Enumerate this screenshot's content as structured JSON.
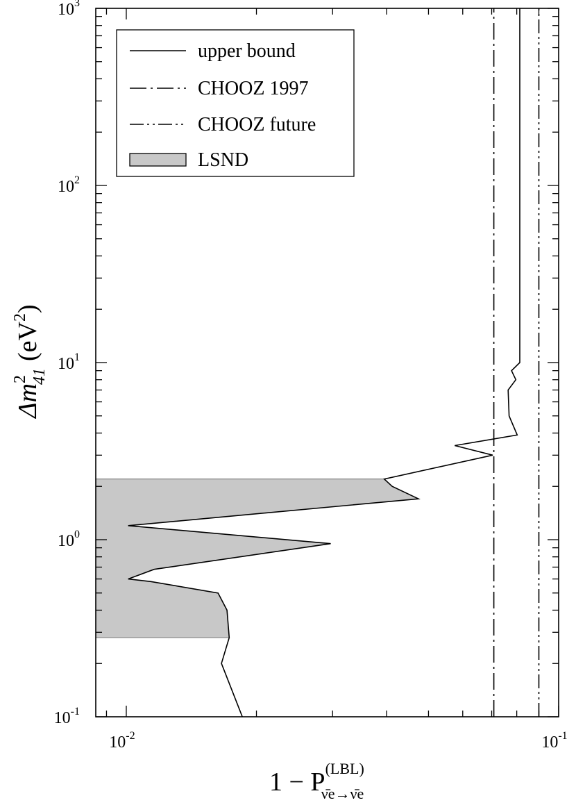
{
  "chart_data": {
    "type": "line",
    "x_scale": "log",
    "y_scale": "log",
    "xlim": [
      0.0085,
      0.1
    ],
    "ylim": [
      0.1,
      1000
    ],
    "grid": false,
    "legend_placement": "top-left",
    "x_ticks": [
      {
        "value": 0.01,
        "base": "10",
        "exp": "-2"
      },
      {
        "value": 0.1,
        "base": "10",
        "exp": "-1"
      }
    ],
    "y_ticks": [
      {
        "value": 0.1,
        "base": "10",
        "exp": "-1"
      },
      {
        "value": 1,
        "base": "10",
        "exp": "0"
      },
      {
        "value": 10,
        "base": "10",
        "exp": "1"
      },
      {
        "value": 100,
        "base": "10",
        "exp": "2"
      },
      {
        "value": 1000,
        "base": "10",
        "exp": "3"
      }
    ],
    "xlabel": {
      "prefix": "1 − P",
      "superscript": "(LBL)",
      "subscript": "ν̄e→ν̄e"
    },
    "ylabel": {
      "symbol": "Δm",
      "superscript": "2",
      "subscript": "41",
      "unit_open": "(eV",
      "unit_sup": "2",
      "unit_close": ")"
    },
    "series": [
      {
        "name": "upper bound",
        "style": "solid",
        "color": "#000000",
        "points": [
          [
            0.01855,
            0.1
          ],
          [
            0.0166,
            0.2
          ],
          [
            0.0173,
            0.28
          ],
          [
            0.0171,
            0.4
          ],
          [
            0.0163,
            0.5
          ],
          [
            0.0114,
            0.58
          ],
          [
            0.0101,
            0.6
          ],
          [
            0.0116,
            0.68
          ],
          [
            0.0297,
            0.95
          ],
          [
            0.0101,
            1.2
          ],
          [
            0.0474,
            1.7
          ],
          [
            0.0412,
            2.0
          ],
          [
            0.0395,
            2.2
          ],
          [
            0.0704,
            3.0
          ],
          [
            0.0575,
            3.4
          ],
          [
            0.0802,
            3.9
          ],
          [
            0.0768,
            5.0
          ],
          [
            0.0764,
            7.0
          ],
          [
            0.0796,
            8.0
          ],
          [
            0.0778,
            9.0
          ],
          [
            0.0813,
            10.0
          ],
          [
            0.0813,
            1000
          ]
        ]
      },
      {
        "name": "CHOOZ 1997",
        "style": "dash-dot",
        "color": "#000000",
        "points": [
          [
            0.0708,
            0.1
          ],
          [
            0.0708,
            1000
          ]
        ]
      },
      {
        "name": "CHOOZ future",
        "style": "dash-dot-dot",
        "color": "#000000",
        "points": [
          [
            0.09,
            0.1
          ],
          [
            0.09,
            1000
          ]
        ]
      }
    ],
    "regions": [
      {
        "name": "LSND",
        "fill": "#c8c8c8",
        "y_range": [
          0.28,
          2.2
        ],
        "right_edge": "upper bound"
      }
    ],
    "legend": [
      {
        "label": "upper bound",
        "kind": "line",
        "style": "solid"
      },
      {
        "label": "CHOOZ 1997",
        "kind": "line",
        "style": "dash-dot"
      },
      {
        "label": "CHOOZ future",
        "kind": "line",
        "style": "dash-dot-dot"
      },
      {
        "label": "LSND",
        "kind": "box",
        "fill": "#c8c8c8"
      }
    ]
  }
}
